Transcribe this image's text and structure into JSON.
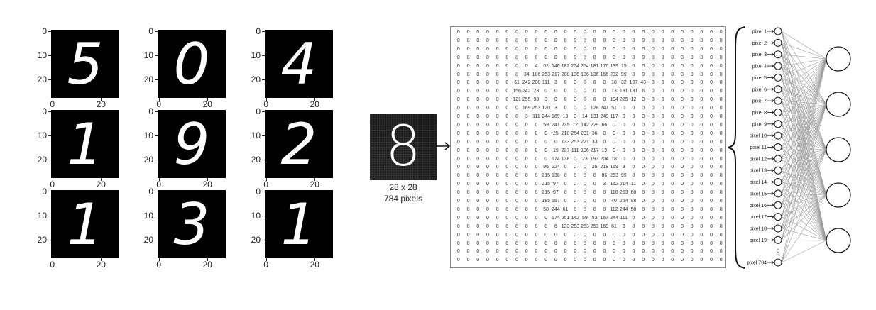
{
  "digit_grid": {
    "cells": [
      {
        "digit": "5",
        "glyph": "5"
      },
      {
        "digit": "0",
        "glyph": "0"
      },
      {
        "digit": "4",
        "glyph": "4"
      },
      {
        "digit": "1",
        "glyph": "1"
      },
      {
        "digit": "9",
        "glyph": "9"
      },
      {
        "digit": "2",
        "glyph": "2"
      },
      {
        "digit": "1",
        "glyph": "1"
      },
      {
        "digit": "3",
        "glyph": "3"
      },
      {
        "digit": "1",
        "glyph": "1"
      }
    ],
    "y_ticks": [
      "0",
      "10",
      "20"
    ],
    "x_ticks": [
      "0",
      "20"
    ]
  },
  "sample": {
    "digit": "8",
    "caption_size": "28 x 28",
    "caption_pixels": "784 pixels"
  },
  "matrix_rows": [
    [
      "0",
      "0",
      "0",
      "0",
      "0",
      "0",
      "0",
      "0",
      "0",
      "0",
      "0",
      "0",
      "0",
      "0",
      "0",
      "0",
      "0",
      "0",
      "0",
      "0",
      "0",
      "0",
      "0",
      "0",
      "0",
      "0",
      "0",
      "0"
    ],
    [
      "0",
      "0",
      "0",
      "0",
      "0",
      "0",
      "0",
      "0",
      "0",
      "0",
      "0",
      "0",
      "0",
      "0",
      "0",
      "0",
      "0",
      "0",
      "0",
      "0",
      "0",
      "0",
      "0",
      "0",
      "0",
      "0",
      "0",
      "0"
    ],
    [
      "0",
      "0",
      "0",
      "0",
      "0",
      "0",
      "0",
      "0",
      "0",
      "0",
      "0",
      "0",
      "0",
      "0",
      "0",
      "0",
      "0",
      "0",
      "0",
      "0",
      "0",
      "0",
      "0",
      "0",
      "0",
      "0",
      "0",
      "0"
    ],
    [
      "0",
      "0",
      "0",
      "0",
      "0",
      "0",
      "0",
      "0",
      "0",
      "0",
      "0",
      "0",
      "0",
      "0",
      "0",
      "0",
      "0",
      "0",
      "0",
      "0",
      "0",
      "0",
      "0",
      "0",
      "0",
      "0",
      "0",
      "0"
    ],
    [
      "0",
      "0",
      "0",
      "0",
      "0",
      "0",
      "0",
      "0",
      "4",
      "62",
      "146",
      "182",
      "254",
      "254",
      "181",
      "176",
      "139",
      "15",
      "0",
      "0",
      "0",
      "0",
      "0",
      "0",
      "0",
      "0",
      "0",
      "0"
    ],
    [
      "0",
      "0",
      "0",
      "0",
      "0",
      "0",
      "0",
      "34",
      "186",
      "253",
      "217",
      "208",
      "136",
      "136",
      "136",
      "166",
      "232",
      "99",
      "0",
      "0",
      "0",
      "0",
      "0",
      "0",
      "0",
      "0",
      "0",
      "0"
    ],
    [
      "0",
      "0",
      "0",
      "0",
      "0",
      "0",
      "61",
      "242",
      "208",
      "111",
      "3",
      "0",
      "0",
      "0",
      "0",
      "0",
      "18",
      "32",
      "107",
      "43",
      "0",
      "0",
      "0",
      "0",
      "0",
      "0",
      "0",
      "0"
    ],
    [
      "0",
      "0",
      "0",
      "0",
      "0",
      "0",
      "156",
      "242",
      "23",
      "0",
      "0",
      "0",
      "0",
      "0",
      "0",
      "0",
      "13",
      "191",
      "181",
      "6",
      "0",
      "0",
      "0",
      "0",
      "0",
      "0",
      "0",
      "0"
    ],
    [
      "0",
      "0",
      "0",
      "0",
      "0",
      "0",
      "121",
      "255",
      "98",
      "3",
      "0",
      "0",
      "0",
      "0",
      "0",
      "8",
      "194",
      "225",
      "12",
      "0",
      "0",
      "0",
      "0",
      "0",
      "0",
      "0",
      "0",
      "0"
    ],
    [
      "0",
      "0",
      "0",
      "0",
      "0",
      "0",
      "0",
      "169",
      "253",
      "120",
      "3",
      "0",
      "0",
      "0",
      "128",
      "247",
      "51",
      "0",
      "0",
      "0",
      "0",
      "0",
      "0",
      "0",
      "0",
      "0",
      "0",
      "0"
    ],
    [
      "0",
      "0",
      "0",
      "0",
      "0",
      "0",
      "0",
      "3",
      "111",
      "244",
      "169",
      "19",
      "0",
      "14",
      "131",
      "249",
      "117",
      "0",
      "0",
      "0",
      "0",
      "0",
      "0",
      "0",
      "0",
      "0",
      "0",
      "0"
    ],
    [
      "0",
      "0",
      "0",
      "0",
      "0",
      "0",
      "0",
      "0",
      "0",
      "59",
      "241",
      "235",
      "72",
      "142",
      "229",
      "66",
      "0",
      "0",
      "0",
      "0",
      "0",
      "0",
      "0",
      "0",
      "0",
      "0",
      "0",
      "0"
    ],
    [
      "0",
      "0",
      "0",
      "0",
      "0",
      "0",
      "0",
      "0",
      "0",
      "0",
      "25",
      "218",
      "254",
      "231",
      "36",
      "0",
      "0",
      "0",
      "0",
      "0",
      "0",
      "0",
      "0",
      "0",
      "0",
      "0",
      "0",
      "0"
    ],
    [
      "0",
      "0",
      "0",
      "0",
      "0",
      "0",
      "0",
      "0",
      "0",
      "0",
      "0",
      "133",
      "253",
      "221",
      "33",
      "0",
      "0",
      "0",
      "0",
      "0",
      "0",
      "0",
      "0",
      "0",
      "0",
      "0",
      "0",
      "0"
    ],
    [
      "0",
      "0",
      "0",
      "0",
      "0",
      "0",
      "0",
      "0",
      "0",
      "0",
      "19",
      "237",
      "111",
      "196",
      "217",
      "19",
      "0",
      "0",
      "0",
      "0",
      "0",
      "0",
      "0",
      "0",
      "0",
      "0",
      "0",
      "0"
    ],
    [
      "0",
      "0",
      "0",
      "0",
      "0",
      "0",
      "0",
      "0",
      "0",
      "0",
      "174",
      "138",
      "0",
      "23",
      "193",
      "204",
      "18",
      "0",
      "0",
      "0",
      "0",
      "0",
      "0",
      "0",
      "0",
      "0",
      "0",
      "0"
    ],
    [
      "0",
      "0",
      "0",
      "0",
      "0",
      "0",
      "0",
      "0",
      "0",
      "96",
      "224",
      "0",
      "0",
      "0",
      "25",
      "218",
      "169",
      "3",
      "0",
      "0",
      "0",
      "0",
      "0",
      "0",
      "0",
      "0",
      "0",
      "0"
    ],
    [
      "0",
      "0",
      "0",
      "0",
      "0",
      "0",
      "0",
      "0",
      "0",
      "215",
      "138",
      "0",
      "0",
      "0",
      "0",
      "86",
      "253",
      "99",
      "0",
      "0",
      "0",
      "0",
      "0",
      "0",
      "0",
      "0",
      "0",
      "0"
    ],
    [
      "0",
      "0",
      "0",
      "0",
      "0",
      "0",
      "0",
      "0",
      "0",
      "215",
      "97",
      "0",
      "0",
      "0",
      "0",
      "3",
      "162",
      "214",
      "11",
      "0",
      "0",
      "0",
      "0",
      "0",
      "0",
      "0",
      "0",
      "0"
    ],
    [
      "0",
      "0",
      "0",
      "0",
      "0",
      "0",
      "0",
      "0",
      "0",
      "215",
      "97",
      "0",
      "0",
      "0",
      "0",
      "0",
      "118",
      "253",
      "68",
      "0",
      "0",
      "0",
      "0",
      "0",
      "0",
      "0",
      "0",
      "0"
    ],
    [
      "0",
      "0",
      "0",
      "0",
      "0",
      "0",
      "0",
      "0",
      "0",
      "185",
      "157",
      "0",
      "0",
      "0",
      "0",
      "0",
      "40",
      "254",
      "98",
      "0",
      "0",
      "0",
      "0",
      "0",
      "0",
      "0",
      "0",
      "0"
    ],
    [
      "0",
      "0",
      "0",
      "0",
      "0",
      "0",
      "0",
      "0",
      "0",
      "50",
      "244",
      "61",
      "0",
      "0",
      "0",
      "0",
      "112",
      "244",
      "58",
      "0",
      "0",
      "0",
      "0",
      "0",
      "0",
      "0",
      "0",
      "0"
    ],
    [
      "0",
      "0",
      "0",
      "0",
      "0",
      "0",
      "0",
      "0",
      "0",
      "0",
      "174",
      "251",
      "142",
      "59",
      "83",
      "167",
      "244",
      "111",
      "0",
      "0",
      "0",
      "0",
      "0",
      "0",
      "0",
      "0",
      "0",
      "0"
    ],
    [
      "0",
      "0",
      "0",
      "0",
      "0",
      "0",
      "0",
      "0",
      "0",
      "0",
      "6",
      "133",
      "253",
      "253",
      "253",
      "169",
      "61",
      "3",
      "0",
      "0",
      "0",
      "0",
      "0",
      "0",
      "0",
      "0",
      "0",
      "0"
    ],
    [
      "0",
      "0",
      "0",
      "0",
      "0",
      "0",
      "0",
      "0",
      "0",
      "0",
      "0",
      "0",
      "0",
      "0",
      "0",
      "0",
      "0",
      "0",
      "0",
      "0",
      "0",
      "0",
      "0",
      "0",
      "0",
      "0",
      "0",
      "0"
    ],
    [
      "0",
      "0",
      "0",
      "0",
      "0",
      "0",
      "0",
      "0",
      "0",
      "0",
      "0",
      "0",
      "0",
      "0",
      "0",
      "0",
      "0",
      "0",
      "0",
      "0",
      "0",
      "0",
      "0",
      "0",
      "0",
      "0",
      "0",
      "0"
    ],
    [
      "0",
      "0",
      "0",
      "0",
      "0",
      "0",
      "0",
      "0",
      "0",
      "0",
      "0",
      "0",
      "0",
      "0",
      "0",
      "0",
      "0",
      "0",
      "0",
      "0",
      "0",
      "0",
      "0",
      "0",
      "0",
      "0",
      "0",
      "0"
    ],
    [
      "0",
      "0",
      "0",
      "0",
      "0",
      "0",
      "0",
      "0",
      "0",
      "0",
      "0",
      "0",
      "0",
      "0",
      "0",
      "0",
      "0",
      "0",
      "0",
      "0",
      "0",
      "0",
      "0",
      "0",
      "0",
      "0",
      "0",
      "0"
    ]
  ],
  "input_labels": [
    "pixel 1",
    "pixel 2",
    "pixel 3",
    "pixel 4",
    "pixel 5",
    "pixel 6",
    "pixel 7",
    "pixel 8",
    "pixel 9",
    "pixel 10",
    "pixel 11",
    "pixel 12",
    "pixel 13",
    "pixel 14",
    "pixel 15",
    "pixel 16",
    "pixel 17",
    "pixel 18",
    "pixel 19",
    "pixel 784"
  ],
  "ellipsis": "⋮",
  "output_node_count": 5,
  "colors": {
    "line": "#9a9a9a",
    "node_stroke": "#111111",
    "image_bg": "#000000"
  },
  "icons": {
    "arrow": "right-arrow-icon",
    "brace": "left-curly-brace-icon"
  }
}
